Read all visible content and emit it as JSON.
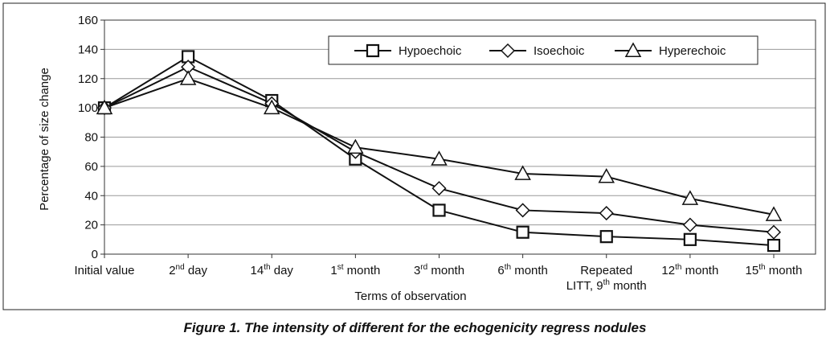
{
  "caption": "Figure 1.  The intensity of different for the echogenicity regress nodules",
  "chart_data": {
    "type": "line",
    "title": "",
    "xlabel": "Terms of observation",
    "ylabel": "Percentage of size change",
    "ylim": [
      0,
      160
    ],
    "yticks": [
      0,
      20,
      40,
      60,
      80,
      100,
      120,
      140,
      160
    ],
    "grid": "horizontal",
    "legend_position": "top-right",
    "categories": [
      {
        "base": "Initial value",
        "sup": "",
        "rest": ""
      },
      {
        "base": "2",
        "sup": "nd",
        "rest": " day"
      },
      {
        "base": "14",
        "sup": "th",
        "rest": " day"
      },
      {
        "base": "1",
        "sup": "st",
        "rest": " month"
      },
      {
        "base": "3",
        "sup": "rd",
        "rest": " month"
      },
      {
        "base": "6",
        "sup": "th",
        "rest": " month"
      },
      {
        "base": "Repeated",
        "sup": "",
        "rest": "",
        "line2": {
          "base": "LITT, 9",
          "sup": "th",
          "rest": " month"
        }
      },
      {
        "base": "12",
        "sup": "th",
        "rest": " month"
      },
      {
        "base": "15",
        "sup": "th",
        "rest": " month"
      }
    ],
    "series": [
      {
        "name": "Hypoechoic",
        "marker": "square",
        "values": [
          100,
          135,
          105,
          65,
          30,
          15,
          12,
          10,
          6
        ]
      },
      {
        "name": "Isoechoic",
        "marker": "diamond",
        "values": [
          100,
          128,
          103,
          70,
          45,
          30,
          28,
          20,
          15
        ]
      },
      {
        "name": "Hyperechoic",
        "marker": "triangle",
        "values": [
          100,
          120,
          100,
          73,
          65,
          55,
          53,
          38,
          27
        ]
      }
    ]
  }
}
